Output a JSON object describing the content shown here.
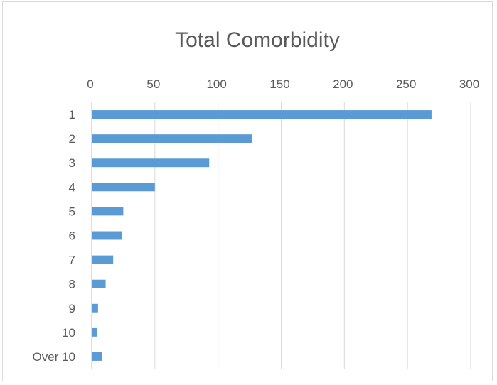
{
  "chart_data": {
    "type": "bar",
    "orientation": "horizontal",
    "title": "Total Comorbidity",
    "xlabel": "",
    "ylabel": "",
    "categories": [
      "1",
      "2",
      "3",
      "4",
      "5",
      "6",
      "7",
      "8",
      "9",
      "10",
      "Over 10"
    ],
    "values": [
      269,
      127,
      93,
      50,
      25,
      24,
      17,
      11,
      5,
      4,
      8
    ],
    "xlim": [
      0,
      300
    ],
    "x_ticks": [
      "0",
      "50",
      "100",
      "150",
      "200",
      "250",
      "300"
    ],
    "x_axis_position": "top",
    "grid": true,
    "legend": "none",
    "bar_color": "#5b9bd5",
    "grid_color": "#d9d9d9"
  }
}
